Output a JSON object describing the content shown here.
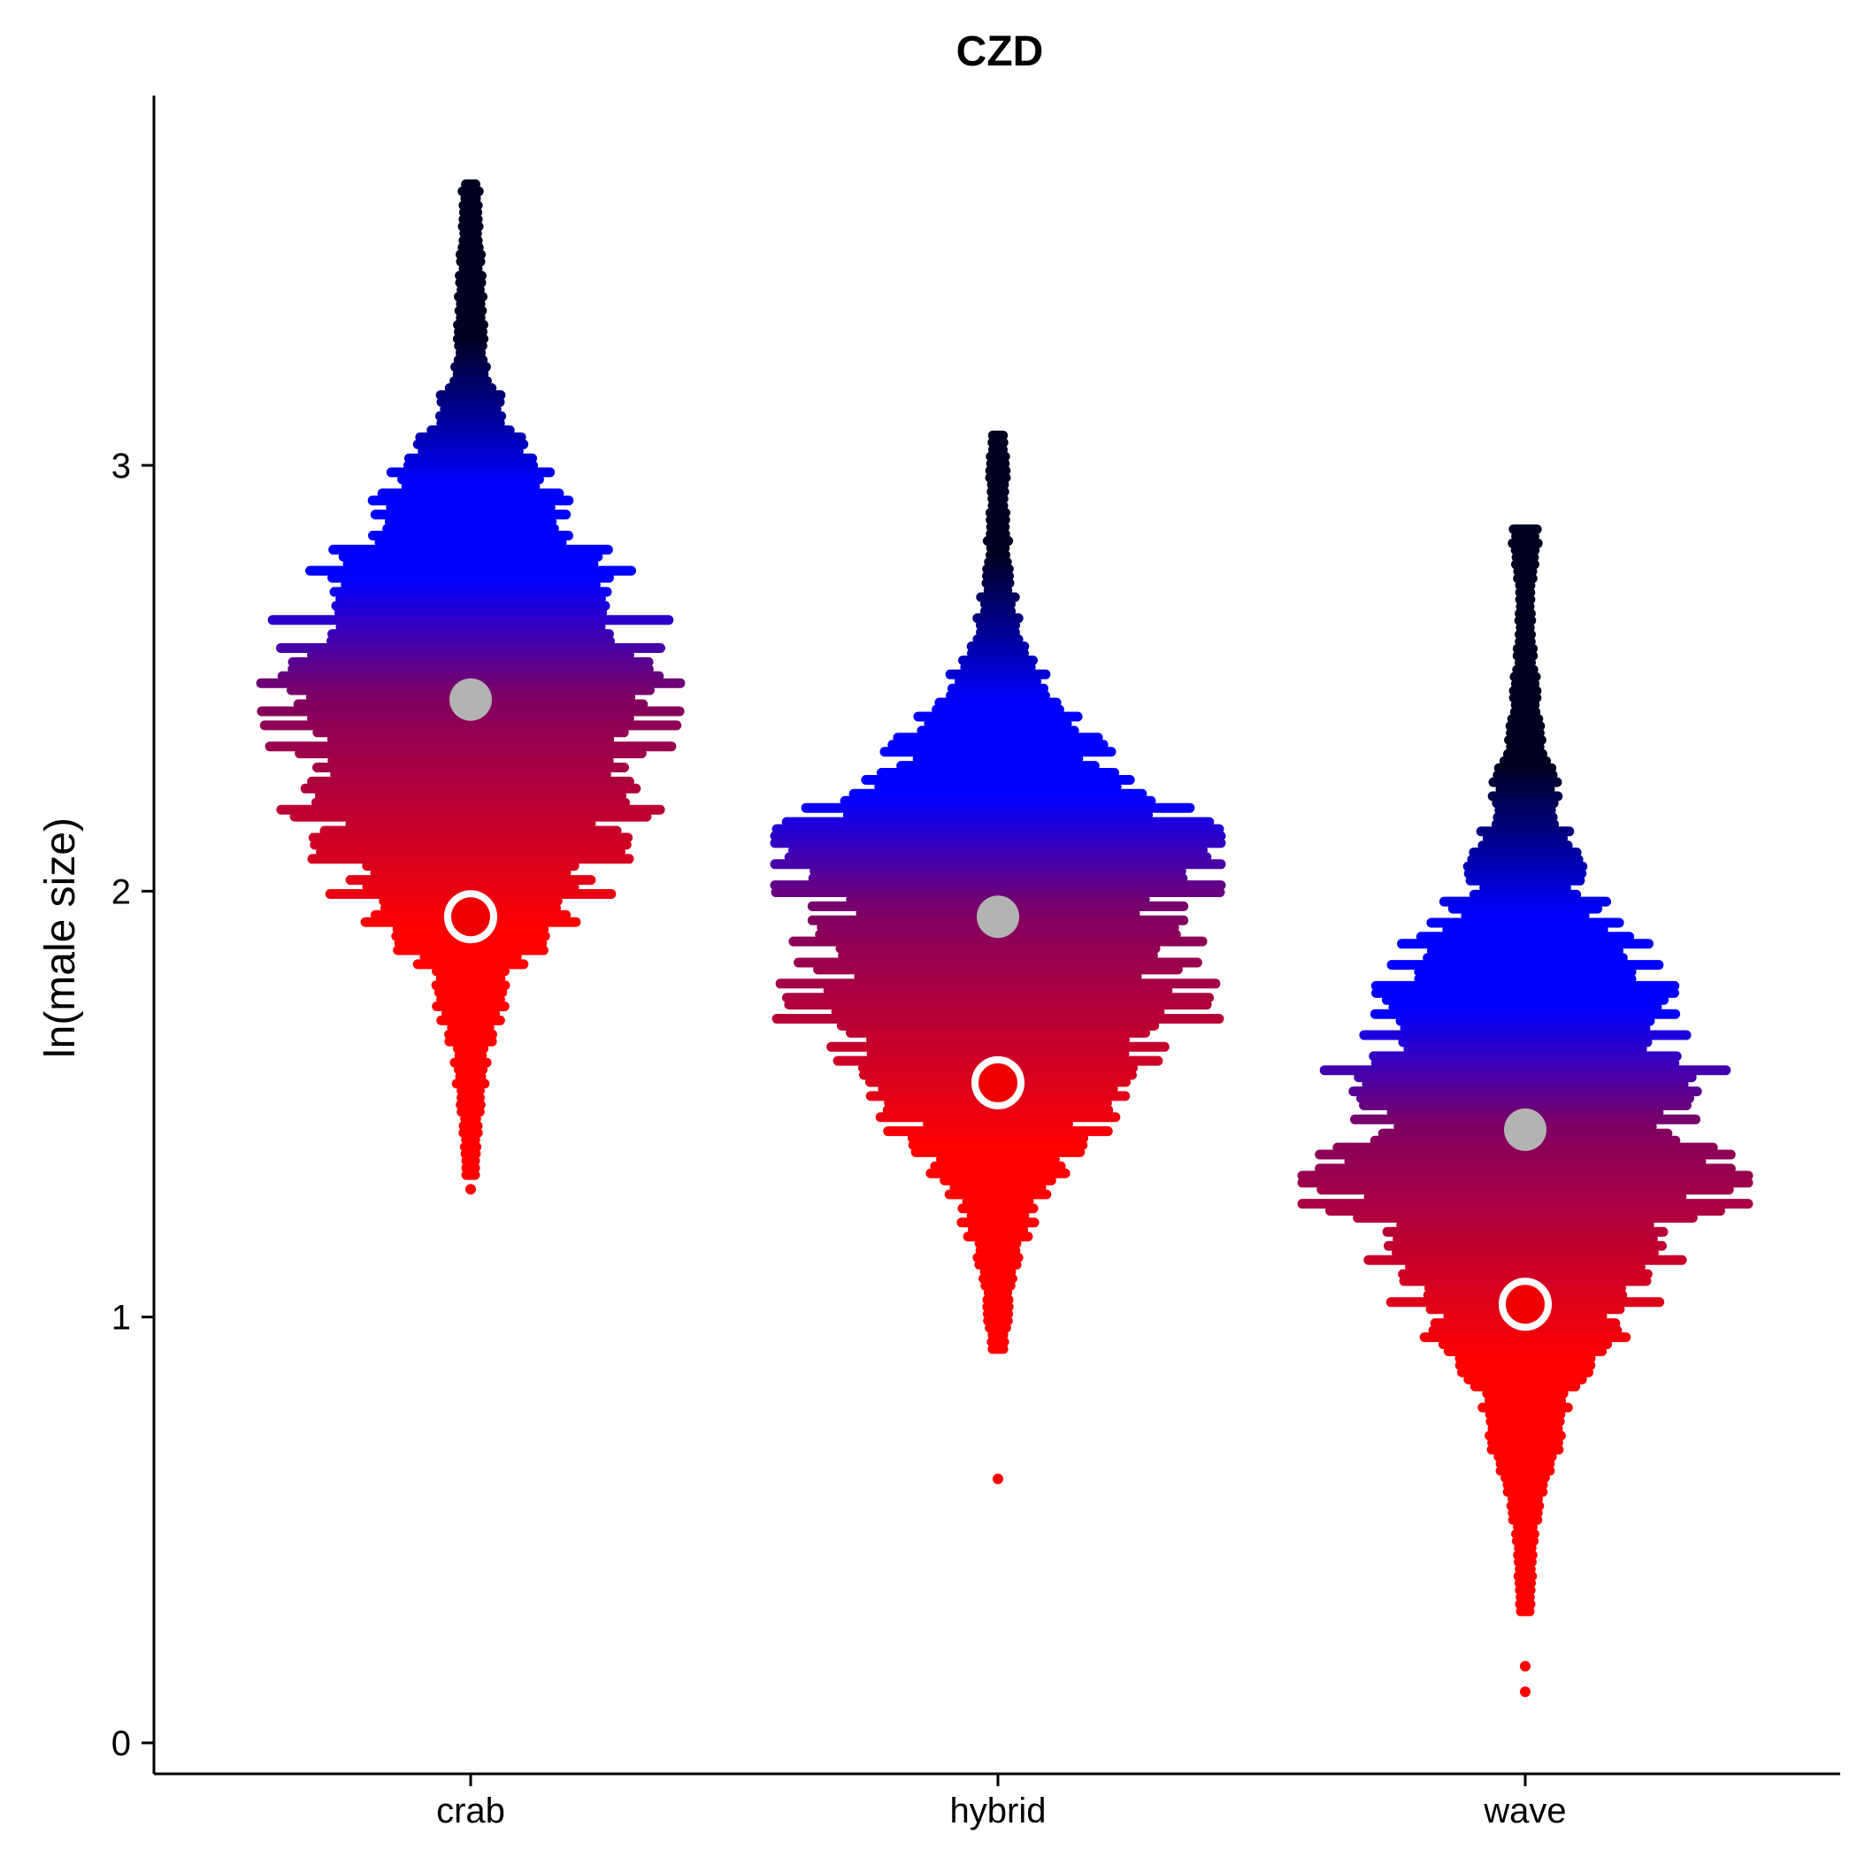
{
  "chart_data": {
    "type": "scatter",
    "subtype": "beeswarm",
    "title": "CZD",
    "xlabel": "",
    "ylabel": "ln(male size)",
    "ylim": [
      -0.08,
      3.85
    ],
    "yticks": [
      0,
      1,
      2,
      3
    ],
    "categories": [
      "crab",
      "hybrid",
      "wave"
    ],
    "grid": false,
    "legend": "none",
    "gradient": {
      "low": "#ff0000",
      "mid": "#800060",
      "high": "#0000ff",
      "top": "#000020"
    },
    "groups": [
      {
        "name": "crab",
        "mean": 2.45,
        "median_marker": 1.94,
        "profile": [
          [
            3.66,
            0.03
          ],
          [
            3.45,
            0.04
          ],
          [
            3.35,
            0.05
          ],
          [
            3.25,
            0.06
          ],
          [
            3.15,
            0.12
          ],
          [
            3.05,
            0.2
          ],
          [
            2.95,
            0.35
          ],
          [
            2.8,
            0.55
          ],
          [
            2.65,
            0.78
          ],
          [
            2.55,
            0.85
          ],
          [
            2.47,
            1.0
          ],
          [
            2.38,
            0.85
          ],
          [
            2.25,
            0.78
          ],
          [
            2.1,
            0.62
          ],
          [
            1.98,
            0.52
          ],
          [
            1.88,
            0.3
          ],
          [
            1.78,
            0.16
          ],
          [
            1.65,
            0.08
          ],
          [
            1.5,
            0.04
          ],
          [
            1.32,
            0.01
          ]
        ],
        "outliers": [
          1.3
        ]
      },
      {
        "name": "hybrid",
        "mean": 1.94,
        "median_marker": 1.55,
        "profile": [
          [
            3.07,
            0.03
          ],
          [
            2.9,
            0.03
          ],
          [
            2.8,
            0.04
          ],
          [
            2.7,
            0.06
          ],
          [
            2.6,
            0.1
          ],
          [
            2.5,
            0.2
          ],
          [
            2.4,
            0.35
          ],
          [
            2.3,
            0.5
          ],
          [
            2.2,
            0.72
          ],
          [
            2.14,
            1.0
          ],
          [
            2.05,
            0.9
          ],
          [
            1.95,
            0.85
          ],
          [
            1.85,
            0.82
          ],
          [
            1.75,
            0.8
          ],
          [
            1.68,
            0.88
          ],
          [
            1.6,
            0.6
          ],
          [
            1.5,
            0.5
          ],
          [
            1.4,
            0.35
          ],
          [
            1.3,
            0.2
          ],
          [
            1.2,
            0.12
          ],
          [
            1.1,
            0.06
          ],
          [
            1.0,
            0.04
          ],
          [
            0.92,
            0.02
          ]
        ],
        "outliers": [
          0.62
        ]
      },
      {
        "name": "wave",
        "mean": 1.44,
        "median_marker": 1.03,
        "profile": [
          [
            2.85,
            0.06
          ],
          [
            2.7,
            0.02
          ],
          [
            2.55,
            0.03
          ],
          [
            2.4,
            0.06
          ],
          [
            2.3,
            0.1
          ],
          [
            2.2,
            0.15
          ],
          [
            2.1,
            0.2
          ],
          [
            2.0,
            0.25
          ],
          [
            1.9,
            0.45
          ],
          [
            1.8,
            0.55
          ],
          [
            1.7,
            0.6
          ],
          [
            1.6,
            0.78
          ],
          [
            1.5,
            0.72
          ],
          [
            1.4,
            0.75
          ],
          [
            1.3,
            1.0
          ],
          [
            1.2,
            0.6
          ],
          [
            1.1,
            0.6
          ],
          [
            1.0,
            0.45
          ],
          [
            0.9,
            0.3
          ],
          [
            0.8,
            0.2
          ],
          [
            0.7,
            0.15
          ],
          [
            0.6,
            0.08
          ],
          [
            0.5,
            0.04
          ],
          [
            0.4,
            0.03
          ],
          [
            0.3,
            0.02
          ]
        ],
        "outliers": [
          0.18,
          0.12
        ]
      }
    ]
  }
}
